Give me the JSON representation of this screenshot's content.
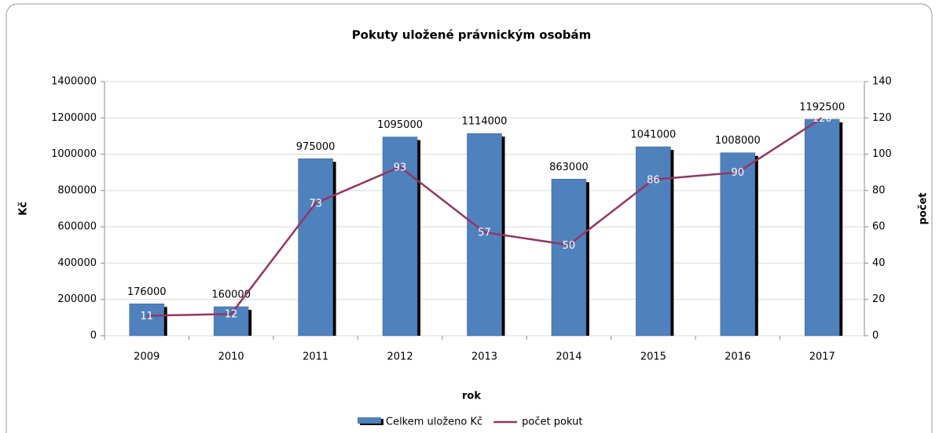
{
  "chart_data": {
    "type": "bar",
    "title": "Pokuty uložené právnickým osobám",
    "x_label": "rok",
    "y_label": "Kč",
    "y2_label": "počet",
    "categories": [
      "2009",
      "2010",
      "2011",
      "2012",
      "2013",
      "2014",
      "2015",
      "2016",
      "2017"
    ],
    "series": [
      {
        "name": "Celkem uloženo Kč",
        "type": "bar",
        "color": "#4f81bd",
        "values": [
          176000,
          160000,
          975000,
          1095000,
          1114000,
          863000,
          1041000,
          1008000,
          1192500
        ]
      },
      {
        "name": "počet pokut",
        "type": "line",
        "axis": "y2",
        "color": "#953563",
        "values": [
          11,
          12,
          73,
          93,
          57,
          50,
          86,
          90,
          120
        ]
      }
    ],
    "ylim": [
      0,
      1400000
    ],
    "yticks": [
      0,
      200000,
      400000,
      600000,
      800000,
      1000000,
      1200000,
      1400000
    ],
    "y2lim": [
      0,
      140
    ],
    "y2ticks": [
      0,
      20,
      40,
      60,
      80,
      100,
      120,
      140
    ],
    "legend": "bottom"
  }
}
